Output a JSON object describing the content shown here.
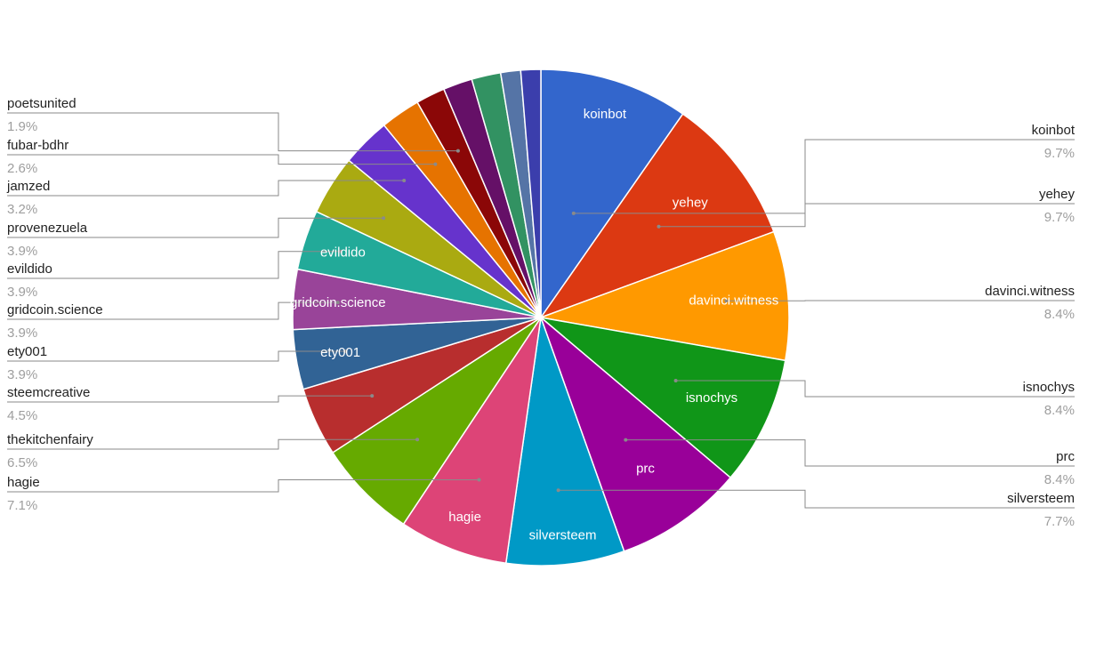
{
  "chart_data": {
    "type": "pie",
    "title": "",
    "slices": [
      {
        "name": "koinbot",
        "pct": "9.7%",
        "value": 9.7,
        "color": "#3366cc",
        "inside": "koinbot"
      },
      {
        "name": "yehey",
        "pct": "9.7%",
        "value": 9.7,
        "color": "#dc3912",
        "inside": "yehey"
      },
      {
        "name": "davinci.witness",
        "pct": "8.4%",
        "value": 8.4,
        "color": "#ff9900",
        "inside": "davinci.witness"
      },
      {
        "name": "isnochys",
        "pct": "8.4%",
        "value": 8.4,
        "color": "#109618",
        "inside": "isnochys"
      },
      {
        "name": "prc",
        "pct": "8.4%",
        "value": 8.4,
        "color": "#990099",
        "inside": "prc"
      },
      {
        "name": "silversteem",
        "pct": "7.7%",
        "value": 7.7,
        "color": "#0099c6",
        "inside": "silversteem"
      },
      {
        "name": "hagie",
        "pct": "7.1%",
        "value": 7.1,
        "color": "#dd4477",
        "inside": "hagie"
      },
      {
        "name": "thekitchenfairy",
        "pct": "6.5%",
        "value": 6.5,
        "color": "#66aa00",
        "inside": ""
      },
      {
        "name": "steemcreative",
        "pct": "4.5%",
        "value": 4.5,
        "color": "#b82e2e",
        "inside": ""
      },
      {
        "name": "ety001",
        "pct": "3.9%",
        "value": 3.9,
        "color": "#316395",
        "inside": "ety001"
      },
      {
        "name": "gridcoin.science",
        "pct": "3.9%",
        "value": 3.9,
        "color": "#994499",
        "inside": "gridcoin.science"
      },
      {
        "name": "evildido",
        "pct": "3.9%",
        "value": 3.9,
        "color": "#22aa99",
        "inside": "evildido"
      },
      {
        "name": "provenezuela",
        "pct": "3.9%",
        "value": 3.9,
        "color": "#aaaa11",
        "inside": ""
      },
      {
        "name": "jamzed",
        "pct": "3.2%",
        "value": 3.2,
        "color": "#6633cc",
        "inside": ""
      },
      {
        "name": "fubar-bdhr",
        "pct": "2.6%",
        "value": 2.6,
        "color": "#e67300",
        "inside": ""
      },
      {
        "name": "poetsunited",
        "pct": "1.9%",
        "value": 1.9,
        "color": "#8b0707",
        "inside": ""
      },
      {
        "name": "",
        "pct": "",
        "value": 1.9,
        "color": "#651067",
        "inside": ""
      },
      {
        "name": "",
        "pct": "",
        "value": 1.9,
        "color": "#329262",
        "inside": ""
      },
      {
        "name": "",
        "pct": "",
        "value": 1.3,
        "color": "#5574a6",
        "inside": ""
      },
      {
        "name": "",
        "pct": "",
        "value": 1.3,
        "color": "#3b3eac",
        "inside": ""
      }
    ],
    "legend": "leader-line labels"
  }
}
